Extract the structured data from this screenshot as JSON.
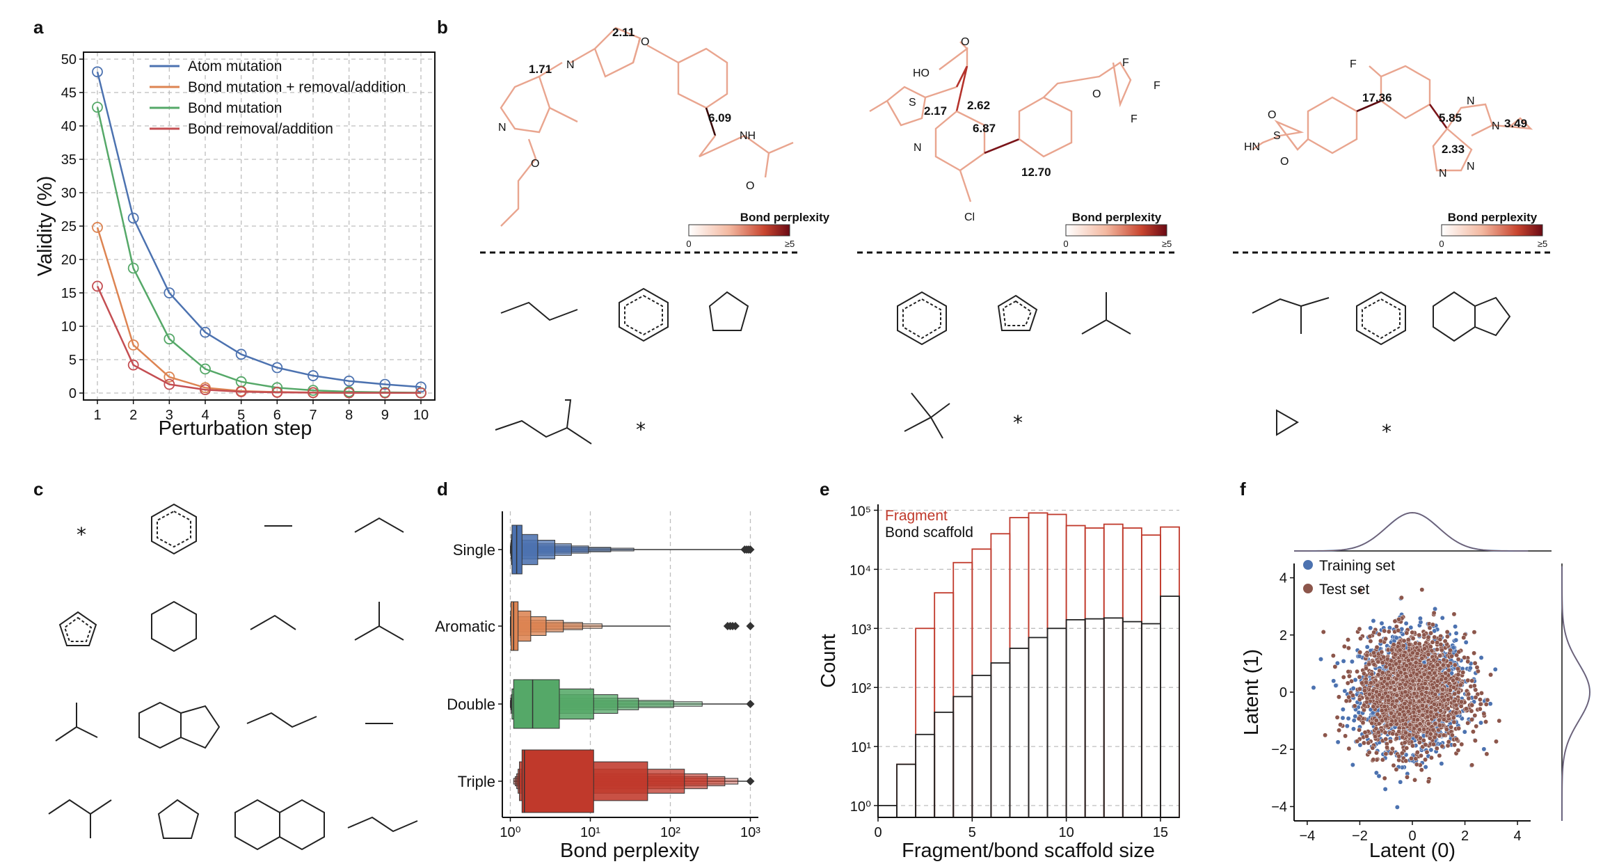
{
  "panels": {
    "a": "a",
    "b": "b",
    "c": "c",
    "d": "d",
    "e": "e",
    "f": "f"
  },
  "colors": {
    "atom": "#4c72b0",
    "bond_rem_add": "#dd8452",
    "bond_mut": "#55a868",
    "removal": "#c44e52",
    "fragment": "#c0392b",
    "scaffold": "#222222",
    "training": "#4c72b0",
    "test": "#8c564b",
    "single": "#4c72b0",
    "aromatic": "#dd8452",
    "double": "#55a868",
    "triple": "#c0392b"
  },
  "chart_data": [
    {
      "panel": "a",
      "type": "line",
      "xlabel": "Perturbation step",
      "ylabel": "Validity (%)",
      "xlim": [
        1,
        10
      ],
      "ylim": [
        0,
        50
      ],
      "x": [
        1,
        2,
        3,
        4,
        5,
        6,
        7,
        8,
        9,
        10
      ],
      "yticks": [
        0,
        5,
        10,
        15,
        20,
        25,
        30,
        35,
        40,
        45,
        50
      ],
      "grid": true,
      "legend_position": "top-right",
      "series": [
        {
          "name": "Atom mutation",
          "values": [
            48.1,
            26.2,
            15.0,
            9.1,
            5.8,
            3.8,
            2.6,
            1.8,
            1.3,
            0.9
          ]
        },
        {
          "name": "Bond mutation + removal/addition",
          "values": [
            24.8,
            7.2,
            2.4,
            0.8,
            0.3,
            0.15,
            0.08,
            0.05,
            0.03,
            0.02
          ]
        },
        {
          "name": "Bond mutation",
          "values": [
            42.8,
            18.7,
            8.1,
            3.6,
            1.7,
            0.8,
            0.4,
            0.2,
            0.1,
            0.05
          ]
        },
        {
          "name": "Bond removal/addition",
          "values": [
            16.0,
            4.2,
            1.3,
            0.5,
            0.2,
            0.1,
            0.05,
            0.03,
            0.02,
            0.01
          ]
        }
      ]
    },
    {
      "panel": "d",
      "type": "boxen",
      "xlabel": "Bond perplexity",
      "xscale": "log",
      "xticks": [
        "10⁰",
        "10¹",
        "10²",
        "10³"
      ],
      "categories": [
        "Single",
        "Aromatic",
        "Double",
        "Triple"
      ],
      "series": [
        {
          "name": "Single",
          "median": 1.2,
          "boxes": [
            [
              1.05,
              1.4
            ],
            [
              1.03,
              2.2
            ],
            [
              1.02,
              3.6
            ],
            [
              1.01,
              5.8
            ],
            [
              1.0,
              9.5
            ],
            [
              1.0,
              18
            ],
            [
              1.0,
              35
            ]
          ],
          "whisker": [
            1.0,
            900
          ],
          "outliers": [
            850,
            900,
            950,
            1000
          ]
        },
        {
          "name": "Aromatic",
          "median": 1.1,
          "boxes": [
            [
              1.02,
              1.25
            ],
            [
              1.01,
              1.8
            ],
            [
              1.0,
              2.8
            ],
            [
              1.0,
              4.6
            ],
            [
              1.0,
              8
            ],
            [
              1.0,
              14
            ]
          ],
          "whisker": [
            1.0,
            100
          ],
          "outliers": [
            520,
            560,
            600,
            650,
            1000
          ]
        },
        {
          "name": "Double",
          "median": 1.9,
          "boxes": [
            [
              1.1,
              4.1
            ],
            [
              1.05,
              11
            ],
            [
              1.03,
              22
            ],
            [
              1.01,
              40
            ],
            [
              1.0,
              110
            ],
            [
              1.0,
              250
            ]
          ],
          "whisker": [
            1.0,
            1000
          ],
          "outliers": [
            1000
          ]
        },
        {
          "name": "Triple",
          "median": 1.5,
          "boxes": [
            [
              1.4,
              11
            ],
            [
              1.3,
              52
            ],
            [
              1.25,
              150
            ],
            [
              1.2,
              290
            ],
            [
              1.15,
              480
            ],
            [
              1.1,
              700
            ]
          ],
          "whisker": [
            1.1,
            1000
          ],
          "outliers": [
            1000
          ]
        }
      ]
    },
    {
      "panel": "e",
      "type": "bar",
      "xlabel": "Fragment/bond scaffold size",
      "ylabel": "Count",
      "yscale": "log",
      "xlim": [
        0,
        16
      ],
      "ylim_exp": [
        -0.2,
        5.1
      ],
      "xticks": [
        0,
        5,
        10,
        15
      ],
      "yticks": [
        "10⁰",
        "10¹",
        "10²",
        "10³",
        "10⁴",
        "10⁵"
      ],
      "grid": true,
      "legend_position": "top-left",
      "series": [
        {
          "name": "Fragment",
          "values": [
            0,
            5,
            1000,
            4000,
            13000,
            22000,
            40000,
            75000,
            90000,
            85000,
            55000,
            50000,
            58000,
            50000,
            38000,
            52000
          ]
        },
        {
          "name": "Bond scaffold",
          "values": [
            1,
            5,
            16,
            38,
            70,
            160,
            260,
            460,
            700,
            1000,
            1400,
            1450,
            1500,
            1300,
            1200,
            3500
          ]
        }
      ]
    },
    {
      "panel": "f",
      "type": "scatter",
      "xlabel": "Latent (0)",
      "ylabel": "Latent (1)",
      "xlim": [
        -4.5,
        4.5
      ],
      "ylim": [
        -4.5,
        4.5
      ],
      "xticks": [
        -4,
        -2,
        0,
        2,
        4
      ],
      "yticks": [
        -4,
        -2,
        0,
        2,
        4
      ],
      "legend_position": "top-left",
      "series": [
        {
          "name": "Training set",
          "distribution": "normal",
          "mean": [
            0,
            0
          ],
          "std": [
            1,
            1
          ]
        },
        {
          "name": "Test set",
          "distribution": "normal",
          "mean": [
            0,
            0
          ],
          "std": [
            1,
            1
          ]
        }
      ]
    }
  ],
  "panel_b": {
    "colorbar_title": "Bond perplexity",
    "colorbar_min": "0",
    "colorbar_max": "≥5",
    "molecules": [
      {
        "atoms": [
          "N",
          "N",
          "O",
          "O",
          "NH",
          "O"
        ],
        "bond_labels": [
          "2.11",
          "1.71",
          "6.09"
        ]
      },
      {
        "atoms": [
          "O",
          "HO",
          "S",
          "N",
          "F",
          "F",
          "F",
          "O",
          "Cl"
        ],
        "bond_labels": [
          "2.62",
          "2.17",
          "6.87",
          "12.70"
        ]
      },
      {
        "atoms": [
          "F",
          "O",
          "S",
          "O",
          "HN",
          "N",
          "N",
          "N",
          "N"
        ],
        "bond_labels": [
          "17.36",
          "5.85",
          "3.49",
          "2.33"
        ]
      }
    ],
    "stars": [
      "*",
      "*",
      "*"
    ]
  },
  "panel_c": {
    "star": "*"
  }
}
